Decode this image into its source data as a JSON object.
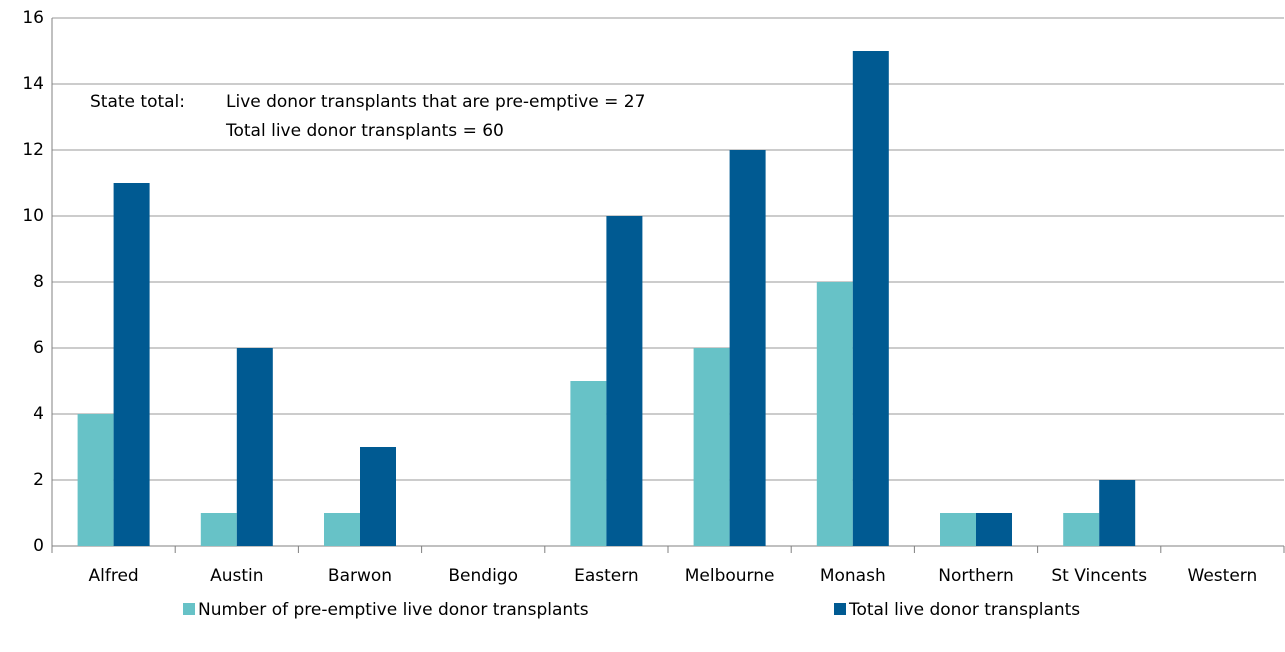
{
  "chart_data": {
    "type": "bar",
    "categories": [
      "Alfred",
      "Austin",
      "Barwon",
      "Bendigo",
      "Eastern",
      "Melbourne",
      "Monash",
      "Northern",
      "St Vincents",
      "Western"
    ],
    "series": [
      {
        "name": "Number of pre-emptive live donor transplants",
        "color": "#67c2c7",
        "values": [
          4,
          1,
          1,
          0,
          5,
          6,
          8,
          1,
          1,
          0
        ]
      },
      {
        "name": "Total live donor transplants",
        "color": "#005a92",
        "values": [
          11,
          6,
          3,
          0,
          10,
          12,
          15,
          1,
          2,
          0
        ]
      }
    ],
    "annotations": [
      "State total:",
      "Live donor transplants that are pre-emptive = 27",
      "Total live donor transplants = 60"
    ],
    "ylim": [
      0,
      16
    ],
    "yticks": [
      0,
      2,
      4,
      6,
      8,
      10,
      12,
      14,
      16
    ],
    "grid": true,
    "legend": "bottom"
  }
}
